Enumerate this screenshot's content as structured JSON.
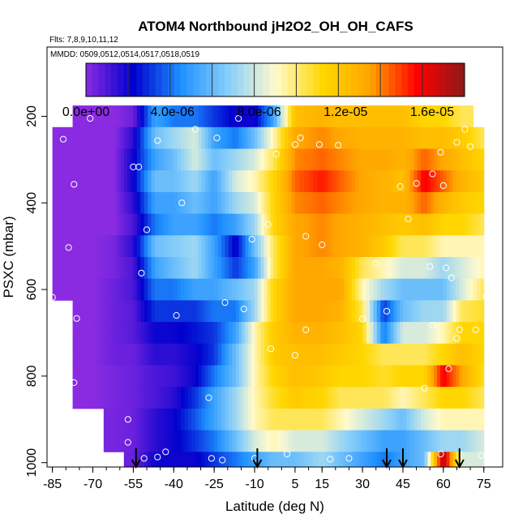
{
  "chart_data": {
    "type": "heatmap",
    "title": "ATOM4 Northbound jH2O2_OH_OH_CAFS",
    "flights_label": "Flts: 7,8,9,10,11,12",
    "dates_label": "MMDD: 0509,0512,0514,0517,0518,0519",
    "xlabel": "Latitude (deg N)",
    "ylabel": "PSXC (mbar)",
    "xlim": [
      -87,
      82
    ],
    "ylim": [
      1010,
      40
    ],
    "x_ticks": [
      -85,
      -70,
      -55,
      -40,
      -25,
      -10,
      5,
      15,
      30,
      45,
      60,
      75
    ],
    "x_tick_labels": [
      "-85",
      "-70",
      "-55",
      "-40",
      "-25",
      "-10",
      "5",
      "15",
      "30",
      "45",
      "60",
      "75"
    ],
    "y_ticks": [
      200,
      400,
      600,
      800,
      1000
    ],
    "y_tick_labels": [
      "200",
      "400",
      "600",
      "800",
      "1000"
    ],
    "colorbar": {
      "min": 0,
      "max": 1.75e-05,
      "ticks": [
        0,
        4e-06,
        8e-06,
        1.2e-05,
        1.6e-05
      ],
      "tick_labels": [
        "0.0e+00",
        "4.0e-06",
        "8.0e-06",
        "1.2e-05",
        "1.6e-05"
      ],
      "colors": [
        "#8a2be2",
        "#0000cd",
        "#1e90ff",
        "#87cefa",
        "#fffacd",
        "#ffd700",
        "#ffa500",
        "#ff0000",
        "#8b1a1a"
      ]
    },
    "pressure_levels": [
      200,
      250,
      300,
      350,
      400,
      450,
      500,
      550,
      600,
      650,
      700,
      750,
      800,
      850,
      900,
      950,
      1000
    ],
    "columns": [
      {
        "lat": -85,
        "values": [
          null,
          0,
          0,
          0,
          0,
          0,
          0,
          0,
          0,
          null,
          null,
          null,
          null,
          null,
          null,
          null,
          null
        ]
      },
      {
        "lat": -70,
        "values": [
          0,
          0,
          0,
          0,
          0,
          0,
          0,
          0,
          0,
          0,
          0,
          0,
          0,
          0,
          null,
          null,
          null
        ]
      },
      {
        "lat": -62,
        "values": [
          0,
          0,
          0,
          0,
          0,
          0,
          3e-07,
          3e-07,
          5e-07,
          5e-07,
          5e-07,
          5e-07,
          3e-07,
          3e-07,
          3e-07,
          3e-07,
          null
        ]
      },
      {
        "lat": -55,
        "values": [
          5e-07,
          1.5e-06,
          2e-06,
          2e-06,
          1.5e-06,
          1e-06,
          1.5e-06,
          1e-06,
          1e-06,
          8e-07,
          8e-07,
          5e-07,
          5e-07,
          5e-07,
          5e-07,
          5e-07,
          5e-07
        ]
      },
      {
        "lat": -47,
        "values": [
          5e-06,
          6e-06,
          5e-06,
          6e-06,
          5e-06,
          4e-06,
          6e-06,
          5e-06,
          4e-06,
          3e-06,
          2e-06,
          1.5e-06,
          1e-06,
          1e-06,
          1.5e-06,
          1.5e-06,
          2e-06
        ]
      },
      {
        "lat": -40,
        "values": [
          4e-06,
          7e-06,
          6e-06,
          6e-06,
          5e-06,
          5e-06,
          6.5e-06,
          6e-06,
          4e-06,
          3e-06,
          2e-06,
          1.5e-06,
          1.2e-06,
          1.5e-06,
          2e-06,
          2e-06,
          2e-06
        ]
      },
      {
        "lat": -32,
        "values": [
          4e-06,
          8e-06,
          8e-06,
          7e-06,
          6e-06,
          5e-06,
          7e-06,
          7e-06,
          5e-06,
          3e-06,
          2.5e-06,
          2e-06,
          2e-06,
          3e-06,
          3.5e-06,
          3e-06,
          2e-06
        ]
      },
      {
        "lat": -25,
        "values": [
          3e-06,
          5e-06,
          6e-06,
          5e-06,
          5e-06,
          4e-06,
          5e-06,
          5e-06,
          5e-06,
          4e-06,
          3e-06,
          3e-06,
          4e-06,
          5e-06,
          5e-06,
          4e-06,
          3e-06
        ]
      },
      {
        "lat": -17,
        "values": [
          2e-06,
          4e-06,
          7e-06,
          8e-06,
          7e-06,
          5e-06,
          2e-06,
          3e-06,
          6e-06,
          4e-06,
          5e-06,
          6e-06,
          6e-06,
          7e-06,
          7e-06,
          6e-06,
          4e-06
        ]
      },
      {
        "lat": -10,
        "values": [
          2e-06,
          6e-06,
          8e-06,
          9e-06,
          8e-06,
          7e-06,
          6e-06,
          5e-06,
          7e-06,
          7e-06,
          9e-06,
          9e-06,
          9e-06,
          9e-06,
          9e-06,
          8e-06,
          5e-06
        ]
      },
      {
        "lat": -3,
        "values": [
          5e-06,
          9e-06,
          1e-05,
          1.1e-05,
          1.1e-05,
          1.1e-05,
          1e-05,
          1e-05,
          1.1e-05,
          1.1e-05,
          1.15e-05,
          1.15e-05,
          1.1e-05,
          1.05e-05,
          1e-05,
          9e-06,
          6e-06
        ]
      },
      {
        "lat": 5,
        "values": [
          1.2e-05,
          1.3e-05,
          1.35e-05,
          1.4e-05,
          1.35e-05,
          1.3e-05,
          1.3e-05,
          1.3e-05,
          1.3e-05,
          1.3e-05,
          1.25e-05,
          1.2e-05,
          1.2e-05,
          1.15e-05,
          1e-05,
          8e-06,
          6e-06
        ]
      },
      {
        "lat": 15,
        "values": [
          1.25e-05,
          1.35e-05,
          1.4e-05,
          1.5e-05,
          1.4e-05,
          1.35e-05,
          1.35e-05,
          1.3e-05,
          1.3e-05,
          1.3e-05,
          1.25e-05,
          1.2e-05,
          1.15e-05,
          1.1e-05,
          1e-05,
          8e-06,
          7e-06
        ]
      },
      {
        "lat": 22,
        "values": [
          1.2e-05,
          1.3e-05,
          1.35e-05,
          1.4e-05,
          1.35e-05,
          1.3e-05,
          1.3e-05,
          1.25e-05,
          1.3e-05,
          1.25e-05,
          1.2e-05,
          1.15e-05,
          1.1e-05,
          1e-05,
          9e-06,
          7e-06,
          6e-06
        ]
      },
      {
        "lat": 30,
        "values": [
          1.2e-05,
          1.25e-05,
          1.3e-05,
          1.3e-05,
          1.3e-05,
          1.25e-05,
          1.25e-05,
          1e-05,
          9e-06,
          1e-05,
          1.1e-05,
          1.1e-05,
          1.1e-05,
          1e-05,
          8e-06,
          6e-06,
          5e-06
        ]
      },
      {
        "lat": 38,
        "values": [
          1.2e-05,
          1.25e-05,
          1.3e-05,
          1.25e-05,
          1.25e-05,
          1.2e-05,
          1.15e-05,
          9e-06,
          7e-06,
          3e-06,
          4e-06,
          1e-05,
          1.05e-05,
          1e-05,
          7e-06,
          5e-06,
          4e-06
        ]
      },
      {
        "lat": 45,
        "values": [
          1.2e-05,
          1.25e-05,
          1.25e-05,
          1.2e-05,
          1.25e-05,
          1.15e-05,
          1e-05,
          8e-06,
          6e-06,
          6e-06,
          8e-06,
          1e-05,
          1.1e-05,
          9e-06,
          6e-06,
          5e-06,
          5e-06
        ]
      },
      {
        "lat": 53,
        "values": [
          1.1e-05,
          1.2e-05,
          1.4e-05,
          1.55e-05,
          1.4e-05,
          1.2e-05,
          1e-05,
          8e-06,
          6e-06,
          7e-06,
          8e-06,
          1e-05,
          1.1e-05,
          1e-05,
          8e-06,
          6e-06,
          6e-06
        ]
      },
      {
        "lat": 60,
        "values": [
          1.1e-05,
          1.2e-05,
          1.3e-05,
          1.4e-05,
          1.25e-05,
          1.1e-05,
          9e-06,
          7e-06,
          6e-06,
          7e-06,
          9e-06,
          1.1e-05,
          1.55e-05,
          1.1e-05,
          9e-06,
          7e-06,
          1.7e-05
        ]
      },
      {
        "lat": 67,
        "values": [
          1e-05,
          1.15e-05,
          1.2e-05,
          1.25e-05,
          1.15e-05,
          1.1e-05,
          9e-06,
          8e-06,
          8e-06,
          1e-05,
          1.1e-05,
          1.2e-05,
          1.3e-05,
          1.1e-05,
          9e-06,
          7e-06,
          8e-06
        ]
      },
      {
        "lat": 75,
        "values": [
          null,
          1e-05,
          1.1e-05,
          1.15e-05,
          1.1e-05,
          1e-05,
          9e-06,
          9e-06,
          1e-05,
          1.05e-05,
          1.1e-05,
          1.1e-05,
          1.05e-05,
          1e-05,
          9e-06,
          8e-06,
          8e-06
        ]
      }
    ],
    "cell_height_mbar": 50,
    "profile_markers_lat": [
      -54,
      -9,
      39,
      45,
      66
    ],
    "observations": [
      {
        "lat": -85,
        "p": 213
      },
      {
        "lat": -81,
        "p": 253
      },
      {
        "lat": -77,
        "p": 357
      },
      {
        "lat": -79,
        "p": 503
      },
      {
        "lat": -85,
        "p": 618
      },
      {
        "lat": -76,
        "p": 667
      },
      {
        "lat": -77,
        "p": 815
      },
      {
        "lat": -57,
        "p": 900
      },
      {
        "lat": -57,
        "p": 953
      },
      {
        "lat": -71,
        "p": 205
      },
      {
        "lat": -53,
        "p": 317
      },
      {
        "lat": -55,
        "p": 317
      },
      {
        "lat": -50,
        "p": 462
      },
      {
        "lat": -52,
        "p": 562
      },
      {
        "lat": -51,
        "p": 990
      },
      {
        "lat": -46,
        "p": 987
      },
      {
        "lat": -43,
        "p": 975
      },
      {
        "lat": -39,
        "p": 660
      },
      {
        "lat": -37,
        "p": 400
      },
      {
        "lat": -46,
        "p": 256
      },
      {
        "lat": -32,
        "p": 230
      },
      {
        "lat": -27,
        "p": 850
      },
      {
        "lat": -26,
        "p": 990
      },
      {
        "lat": -22,
        "p": 994
      },
      {
        "lat": -24,
        "p": 250
      },
      {
        "lat": -21,
        "p": 630
      },
      {
        "lat": -16,
        "p": 205
      },
      {
        "lat": -14,
        "p": 645
      },
      {
        "lat": -11,
        "p": 484
      },
      {
        "lat": -10,
        "p": 990
      },
      {
        "lat": -2,
        "p": 287
      },
      {
        "lat": -5,
        "p": 450
      },
      {
        "lat": -4,
        "p": 737
      },
      {
        "lat": 2,
        "p": 980
      },
      {
        "lat": 5,
        "p": 752
      },
      {
        "lat": 5,
        "p": 265
      },
      {
        "lat": 7,
        "p": 250
      },
      {
        "lat": 9,
        "p": 477
      },
      {
        "lat": 9,
        "p": 693
      },
      {
        "lat": 14,
        "p": 265
      },
      {
        "lat": 15,
        "p": 497
      },
      {
        "lat": 18,
        "p": 992
      },
      {
        "lat": 21,
        "p": 267
      },
      {
        "lat": 25,
        "p": 990
      },
      {
        "lat": 30,
        "p": 668
      },
      {
        "lat": 35,
        "p": 540
      },
      {
        "lat": 39,
        "p": 650
      },
      {
        "lat": 44,
        "p": 362
      },
      {
        "lat": 47,
        "p": 437
      },
      {
        "lat": 50,
        "p": 355
      },
      {
        "lat": 53,
        "p": 828
      },
      {
        "lat": 56,
        "p": 333
      },
      {
        "lat": 56,
        "p": 683
      },
      {
        "lat": 59,
        "p": 283
      },
      {
        "lat": 60,
        "p": 360
      },
      {
        "lat": 61,
        "p": 550
      },
      {
        "lat": 63,
        "p": 573
      },
      {
        "lat": 65,
        "p": 713
      },
      {
        "lat": 66,
        "p": 693
      },
      {
        "lat": 68,
        "p": 230
      },
      {
        "lat": 70,
        "p": 270
      },
      {
        "lat": 76,
        "p": 615
      },
      {
        "lat": 72,
        "p": 693
      },
      {
        "lat": 74,
        "p": 983
      },
      {
        "lat": 55,
        "p": 547
      },
      {
        "lat": 65,
        "p": 260
      },
      {
        "lat": 62,
        "p": 783
      },
      {
        "lat": 59,
        "p": 980
      }
    ]
  }
}
